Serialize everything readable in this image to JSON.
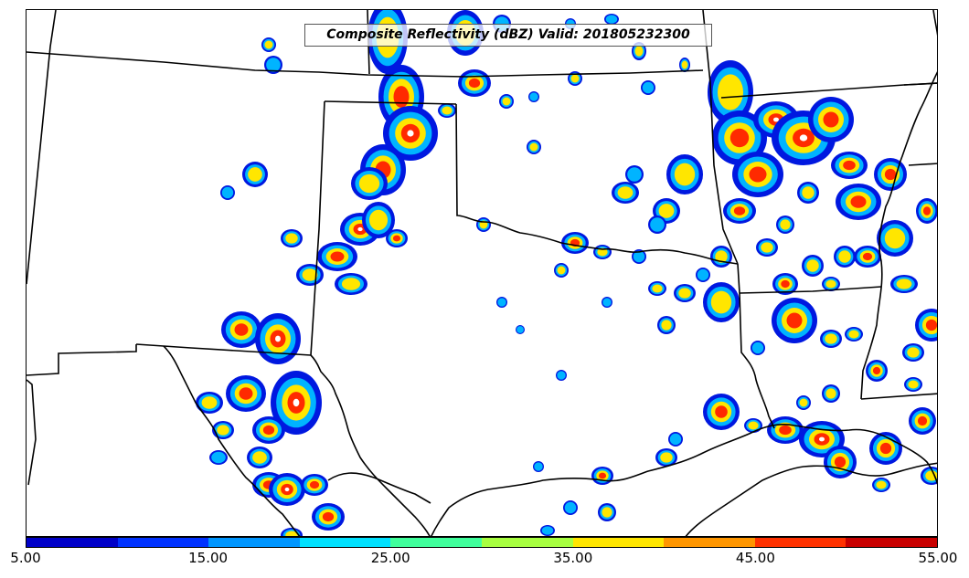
{
  "map": {
    "title": "Composite Reflectivity (dBZ) Valid: 201805232300",
    "field": "Composite Reflectivity",
    "units": "dBZ",
    "valid_time": "201805232300"
  },
  "colorbar": {
    "colors": [
      "#0000c8",
      "#0032ff",
      "#0096ff",
      "#00e1ff",
      "#40ff9c",
      "#a8ff40",
      "#ffe600",
      "#ff9600",
      "#ff3200",
      "#c80000"
    ],
    "tick_labels": [
      "5.00",
      "15.00",
      "25.00",
      "35.00",
      "45.00",
      "55.00"
    ]
  },
  "echo_colors": {
    "light": "#0018e0",
    "moderate": "#00b4ff",
    "strong": "#ffe600",
    "intense": "#ff2a00",
    "extreme": "#ffffff"
  },
  "boundary_color": "#000000"
}
